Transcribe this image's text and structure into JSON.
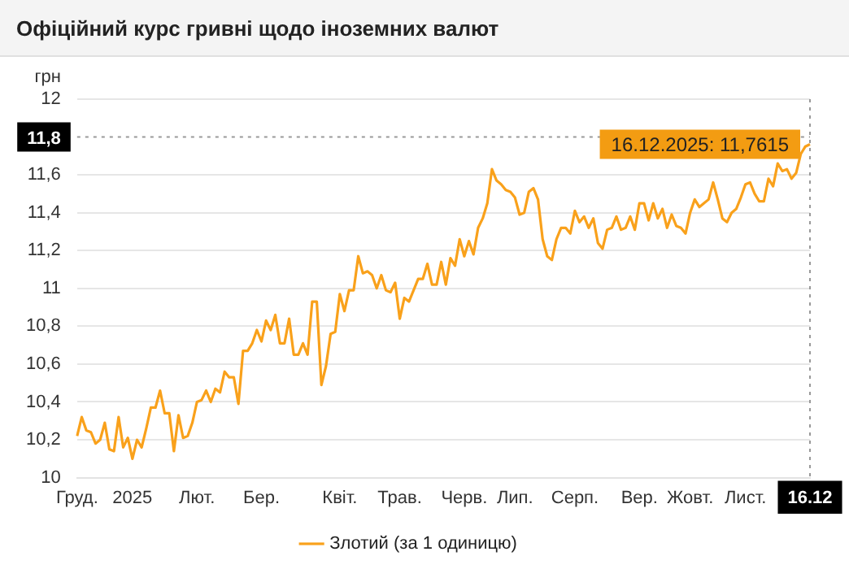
{
  "chart_data": {
    "type": "line",
    "title": "Офіційний курс гривні щодо іноземних валют",
    "ylabel": "грн",
    "categories": [
      "Груд.",
      null,
      null,
      null,
      null,
      null,
      null,
      null,
      null,
      null,
      null,
      null,
      "2025",
      null,
      null,
      null,
      null,
      null,
      null,
      null,
      null,
      null,
      null,
      null,
      null,
      null,
      "Лют.",
      null,
      null,
      null,
      null,
      null,
      null,
      null,
      null,
      null,
      null,
      null,
      null,
      null,
      "Бер.",
      null,
      null,
      null,
      null,
      null,
      null,
      null,
      null,
      null,
      null,
      null,
      null,
      null,
      null,
      null,
      null,
      "Квіт.",
      null,
      null,
      null,
      null,
      null,
      null,
      null,
      null,
      null,
      null,
      null,
      null,
      "Трав.",
      null,
      null,
      null,
      null,
      null,
      null,
      null,
      null,
      null,
      null,
      null,
      null,
      null,
      "Черв.",
      null,
      null,
      null,
      null,
      null,
      null,
      null,
      null,
      null,
      null,
      "Лип.",
      null,
      null,
      null,
      null,
      null,
      null,
      null,
      null,
      null,
      null,
      null,
      null,
      "Серп.",
      null,
      null,
      null,
      null,
      null,
      null,
      null,
      null,
      null,
      null,
      null,
      null,
      null,
      "Вер.",
      null,
      null,
      null,
      null,
      null,
      null,
      null,
      null,
      null,
      null,
      "Жовт.",
      null,
      null,
      null,
      null,
      null,
      null,
      null,
      null,
      null,
      null,
      null,
      "Лист.",
      null,
      null,
      null,
      null,
      null,
      null,
      null,
      null,
      null,
      null,
      null,
      null,
      null,
      "16.12"
    ],
    "series": [
      {
        "name": "Злотий (за 1 одиницю)",
        "color": "#f9a11b",
        "values": [
          10.22,
          10.32,
          10.25,
          10.24,
          10.18,
          10.2,
          10.29,
          10.15,
          10.14,
          10.32,
          10.16,
          10.21,
          10.1,
          10.2,
          10.16,
          10.26,
          10.37,
          10.37,
          10.46,
          10.34,
          10.34,
          10.14,
          10.33,
          10.21,
          10.22,
          10.29,
          10.4,
          10.41,
          10.46,
          10.4,
          10.47,
          10.45,
          10.56,
          10.53,
          10.53,
          10.39,
          10.67,
          10.67,
          10.71,
          10.78,
          10.72,
          10.83,
          10.78,
          10.86,
          10.71,
          10.71,
          10.84,
          10.65,
          10.65,
          10.71,
          10.65,
          10.93,
          10.93,
          10.49,
          10.59,
          10.76,
          10.77,
          10.97,
          10.88,
          10.99,
          10.99,
          11.17,
          11.08,
          11.09,
          11.07,
          11.0,
          11.07,
          10.99,
          10.98,
          11.03,
          10.84,
          10.95,
          10.93,
          10.99,
          11.05,
          11.05,
          11.13,
          11.02,
          11.02,
          11.14,
          11.02,
          11.16,
          11.12,
          11.26,
          11.17,
          11.25,
          11.18,
          11.32,
          11.37,
          11.45,
          11.63,
          11.57,
          11.55,
          11.52,
          11.51,
          11.48,
          11.39,
          11.4,
          11.51,
          11.53,
          11.47,
          11.26,
          11.17,
          11.15,
          11.26,
          11.32,
          11.32,
          11.29,
          11.41,
          11.35,
          11.38,
          11.32,
          11.37,
          11.24,
          11.21,
          11.31,
          11.32,
          11.38,
          11.31,
          11.32,
          11.38,
          11.31,
          11.45,
          11.45,
          11.36,
          11.45,
          11.37,
          11.42,
          11.32,
          11.39,
          11.33,
          11.32,
          11.29,
          11.4,
          11.47,
          11.43,
          11.45,
          11.47,
          11.56,
          11.47,
          11.37,
          11.35,
          11.4,
          11.42,
          11.48,
          11.55,
          11.56,
          11.5,
          11.46,
          11.46,
          11.58,
          11.54,
          11.66,
          11.62,
          11.63,
          11.58,
          11.61,
          11.71,
          11.75,
          11.7615
        ]
      }
    ],
    "ylim": [
      10,
      12
    ],
    "yticks": [
      10,
      {
        "value": 10.2,
        "label": "10,2"
      },
      {
        "value": 10.4,
        "label": "10,4"
      },
      {
        "value": 10.6,
        "label": "10,6"
      },
      {
        "value": 10.8,
        "label": "10,8"
      },
      11,
      {
        "value": 11.2,
        "label": "11,2"
      },
      {
        "value": 11.4,
        "label": "11,4"
      },
      {
        "value": 11.6,
        "label": "11,6"
      },
      12
    ],
    "ref_lines": [
      {
        "axis": "y",
        "value": 11.8,
        "label": "11,8",
        "color": "#999999",
        "line_style": "dotted"
      },
      {
        "axis": "x",
        "value": "16.12",
        "color": "#999999",
        "line_style": "dotted"
      }
    ],
    "annotations": [
      {
        "text": "16.12.2025: 11,7615",
        "x": "16.12",
        "y": 11.7615
      }
    ],
    "grid": "y",
    "legend": "bottom",
    "marker": "none",
    "line_style": "solid"
  }
}
